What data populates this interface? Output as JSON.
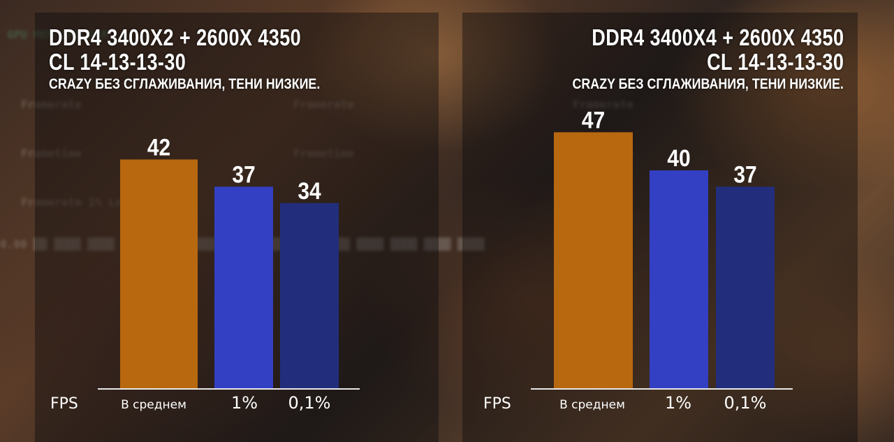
{
  "chart_data": [
    {
      "type": "bar",
      "title": "DDR4 3400X2 + 2600X 4350",
      "subtitle": "CL 14-13-13-30",
      "caption": "CRAZY БЕЗ СГЛАЖИВАНИЯ, ТЕНИ НИЗКИЕ.",
      "ylabel": "FPS",
      "categories": [
        "В среднем",
        "1%",
        "0,1%"
      ],
      "values": [
        42,
        37,
        34
      ],
      "colors": [
        "#b8680e",
        "#3340c4",
        "#222e7c"
      ],
      "ylim": [
        0,
        60
      ]
    },
    {
      "type": "bar",
      "title": "DDR4 3400X4 + 2600X 4350",
      "subtitle": "CL 14-13-13-30",
      "caption": "CRAZY БЕЗ СГЛАЖИВАНИЯ, ТЕНИ НИЗКИЕ.",
      "ylabel": "FPS",
      "categories": [
        "В среднем",
        "1%",
        "0,1%"
      ],
      "values": [
        47,
        40,
        37
      ],
      "colors": [
        "#b8680e",
        "#3340c4",
        "#222e7c"
      ],
      "ylim": [
        0,
        60
      ]
    }
  ]
}
